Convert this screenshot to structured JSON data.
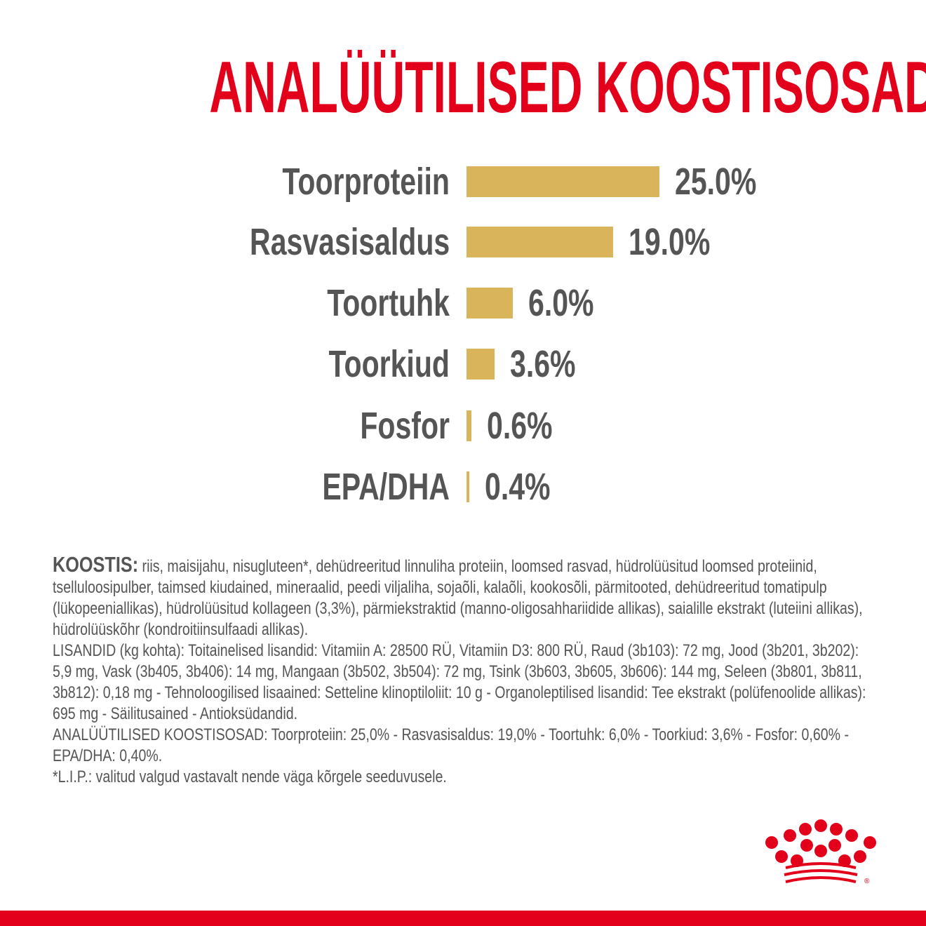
{
  "title": "ANALÜÜTILISED KOOSTISOSAD",
  "colors": {
    "brand_red": "#e2001a",
    "bar_gold": "#d9b45a",
    "text_gray": "#555555"
  },
  "chart_data": {
    "type": "bar",
    "orientation": "horizontal",
    "categories": [
      "Toorproteiin",
      "Rasvasisaldus",
      "Toortuhk",
      "Toorkiud",
      "Fosfor",
      "EPA/DHA"
    ],
    "values": [
      25.0,
      19.0,
      6.0,
      3.6,
      0.6,
      0.4
    ],
    "value_labels": [
      "25.0%",
      "19.0%",
      "6.0%",
      "3.6%",
      "0.6%",
      "0.4%"
    ],
    "unit": "%",
    "grid": false
  },
  "composition": {
    "heading": "KOOSTIS:",
    "ingredients": " riis, maisijahu, nisugluteen*, dehüdreeritud linnuliha proteiin, loomsed rasvad, hüdrolüüsitud loomsed proteiinid, tselluloosipulber, taimsed kiudained, mineraalid, peedi viljaliha, sojaõli, kalaõli, kookosõli, pärmitooted, dehüdreeritud tomatipulp (lükopeeniallikas), hüdrolüüsitud kollageen (3,3%), pärmiekstraktid (manno-oligosahhariidide allikas), saialille ekstrakt (luteiini allikas), hüdrolüüskõhr (kondroitiinsulfaadi allikas).",
    "additives": "LISANDID (kg kohta): Toitainelised lisandid: Vitamiin A: 28500 RÜ, Vitamiin D3: 800 RÜ, Raud (3b103): 72 mg, Jood (3b201, 3b202): 5,9 mg, Vask (3b405, 3b406): 14 mg, Mangaan (3b502, 3b504): 72 mg, Tsink (3b603, 3b605, 3b606): 144 mg, Seleen (3b801, 3b811, 3b812): 0,18 mg - Tehnoloogilised lisaained: Setteline klinoptiloliit: 10 g - Organoleptilised lisandid: Tee ekstrakt (polüfenoolide allikas): 695 mg - Säilitusained - Antioksüdandid.",
    "analytical": "ANALÜÜTILISED KOOSTISOSAD: Toorproteiin: 25,0% - Rasvasisaldus: 19,0% - Toortuhk: 6,0% - Toorkiud: 3,6% - Fosfor: 0,60% - EPA/DHA: 0,40%.",
    "footnote": "*L.I.P.: valitud valgud vastavalt nende väga kõrgele seeduvusele."
  },
  "logo": {
    "name": "royal-canin-crown-logo",
    "mark": "®"
  }
}
